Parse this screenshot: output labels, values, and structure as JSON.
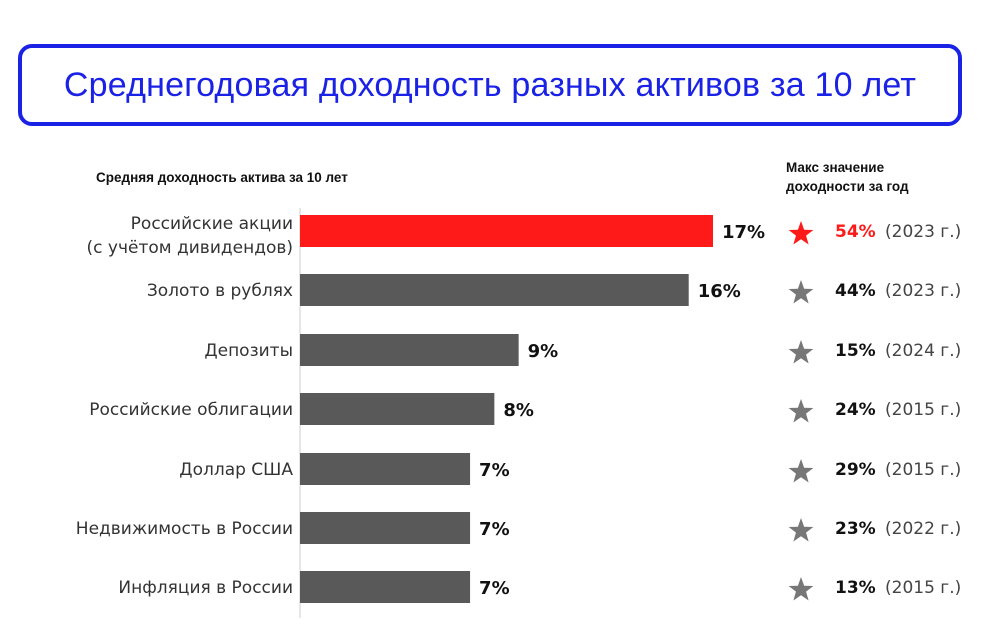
{
  "title": "Среднегодовая доходность разных активов за 10 лет",
  "subtitle_left": "Средняя доходность актива за 10 лет",
  "subtitle_right_line1": "Макс значение",
  "subtitle_right_line2": "доходности за год",
  "colors": {
    "title": "#1a22e6",
    "highlight": "#ff1a1a",
    "bar": "#595959",
    "star": "#777777"
  },
  "chart_data": {
    "type": "bar",
    "orientation": "horizontal",
    "categories": [
      [
        "Российские акции",
        "(с учётом дивидендов)"
      ],
      [
        "Золото в рублях"
      ],
      [
        "Депозиты"
      ],
      [
        "Российские облигации"
      ],
      [
        "Доллар США"
      ],
      [
        "Недвижимость в России"
      ],
      [
        "Инфляция в России"
      ]
    ],
    "values": [
      17,
      16,
      9,
      8,
      7,
      7,
      7
    ],
    "value_labels": [
      "17%",
      "16%",
      "9%",
      "8%",
      "7%",
      "7%",
      "7%"
    ],
    "highlight_index": 0,
    "xlim": [
      0,
      17
    ],
    "max_yearly": [
      {
        "value": "54%",
        "year": "(2023 г.)"
      },
      {
        "value": "44%",
        "year": "(2023 г.)"
      },
      {
        "value": "15%",
        "year": "(2024 г.)"
      },
      {
        "value": "24%",
        "year": "(2015 г.)"
      },
      {
        "value": "29%",
        "year": "(2015 г.)"
      },
      {
        "value": "23%",
        "year": "(2022 г.)"
      },
      {
        "value": "13%",
        "year": "(2015 г.)"
      }
    ]
  }
}
